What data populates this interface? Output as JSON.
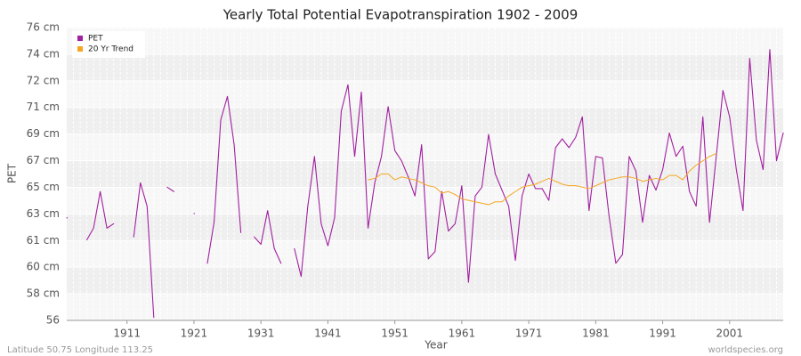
{
  "chart_data": {
    "type": "line",
    "title": "Yearly Total Potential Evapotranspiration 1902 - 2009",
    "xlabel": "Year",
    "ylabel": "PET",
    "footer_left": "Latitude 50.75 Longitude 113.25",
    "footer_right": "worldspecies.org",
    "legend": "upper left",
    "grid": true,
    "x": [
      1902,
      1903,
      1904,
      1905,
      1906,
      1907,
      1908,
      1909,
      1910,
      1911,
      1912,
      1913,
      1914,
      1915,
      1916,
      1917,
      1918,
      1919,
      1920,
      1921,
      1922,
      1923,
      1924,
      1925,
      1926,
      1927,
      1928,
      1929,
      1930,
      1931,
      1932,
      1933,
      1934,
      1935,
      1936,
      1937,
      1938,
      1939,
      1940,
      1941,
      1942,
      1943,
      1944,
      1945,
      1946,
      1947,
      1948,
      1949,
      1950,
      1951,
      1952,
      1953,
      1954,
      1955,
      1956,
      1957,
      1958,
      1959,
      1960,
      1961,
      1962,
      1963,
      1964,
      1965,
      1966,
      1967,
      1968,
      1969,
      1970,
      1971,
      1972,
      1973,
      1974,
      1975,
      1976,
      1977,
      1978,
      1979,
      1980,
      1981,
      1982,
      1983,
      1984,
      1985,
      1986,
      1987,
      1988,
      1989,
      1990,
      1991,
      1992,
      1993,
      1994,
      1995,
      1996,
      1997,
      1998,
      1999,
      2000,
      2001,
      2002,
      2003,
      2004,
      2005,
      2006,
      2007,
      2008,
      2009
    ],
    "series": [
      {
        "name": "PET",
        "color": "#a0209f",
        "values": [
          63.0,
          null,
          null,
          61.5,
          62.3,
          64.8,
          62.3,
          62.6,
          null,
          null,
          61.7,
          65.4,
          63.8,
          56.2,
          null,
          65.1,
          64.8,
          null,
          null,
          63.3,
          null,
          59.9,
          62.7,
          69.7,
          71.3,
          68.0,
          62.0,
          null,
          61.7,
          61.2,
          63.5,
          60.9,
          59.9,
          null,
          60.9,
          59.0,
          63.8,
          67.2,
          62.6,
          61.1,
          63.0,
          70.3,
          72.1,
          67.2,
          71.6,
          62.3,
          65.4,
          67.2,
          70.6,
          67.6,
          66.9,
          65.8,
          64.5,
          68.0,
          60.2,
          60.7,
          64.8,
          62.1,
          62.6,
          65.2,
          58.6,
          64.5,
          65.1,
          68.7,
          66.0,
          64.9,
          63.8,
          60.1,
          64.5,
          66.0,
          65.0,
          65.0,
          64.2,
          67.8,
          68.4,
          67.8,
          68.5,
          69.9,
          63.5,
          67.2,
          67.1,
          63.1,
          59.9,
          60.5,
          67.2,
          66.2,
          62.7,
          65.9,
          64.9,
          66.3,
          68.8,
          67.2,
          67.9,
          64.8,
          63.8,
          69.9,
          62.7,
          67.2,
          71.7,
          69.9,
          66.3,
          63.5,
          73.9,
          68.3,
          66.3,
          74.5,
          66.9,
          68.8
        ]
      },
      {
        "name": "20 Yr Trend",
        "color": "#f5a623",
        "values": [
          null,
          null,
          null,
          null,
          null,
          null,
          null,
          null,
          null,
          null,
          null,
          null,
          null,
          null,
          null,
          null,
          null,
          null,
          null,
          null,
          null,
          null,
          null,
          null,
          null,
          null,
          null,
          null,
          null,
          null,
          null,
          null,
          null,
          null,
          null,
          null,
          null,
          null,
          null,
          null,
          null,
          null,
          null,
          null,
          null,
          65.6,
          65.7,
          66.0,
          66.0,
          65.6,
          65.8,
          65.7,
          65.6,
          65.4,
          65.2,
          65.1,
          64.7,
          64.8,
          64.6,
          64.3,
          64.2,
          64.1,
          64.0,
          63.9,
          64.1,
          64.1,
          64.5,
          64.8,
          65.1,
          65.2,
          65.3,
          65.5,
          65.7,
          65.5,
          65.3,
          65.2,
          65.2,
          65.1,
          65.0,
          65.2,
          65.4,
          65.6,
          65.7,
          65.8,
          65.8,
          65.7,
          65.5,
          65.6,
          65.7,
          65.6,
          65.9,
          65.9,
          65.6,
          66.2,
          66.6,
          66.9,
          67.2,
          67.4,
          null,
          null,
          null,
          null,
          null,
          null,
          null,
          null,
          null,
          null
        ]
      }
    ],
    "xlim": [
      1902,
      2009
    ],
    "xticks": [
      1911,
      1921,
      1931,
      1941,
      1951,
      1961,
      1971,
      1981,
      1991,
      2001
    ],
    "ylim": [
      56,
      76
    ],
    "yticks": [
      56,
      {
        "value": 57.82,
        "label": "58 cm"
      },
      {
        "value": 59.64,
        "label": "60 cm"
      },
      {
        "value": 61.45,
        "label": "61 cm"
      },
      {
        "value": 63.27,
        "label": "63 cm"
      },
      {
        "value": 65.09,
        "label": "65 cm"
      },
      {
        "value": 66.91,
        "label": "67 cm"
      },
      {
        "value": 68.73,
        "label": "69 cm"
      },
      {
        "value": 70.55,
        "label": "71 cm"
      },
      {
        "value": 72.36,
        "label": "72 cm"
      },
      {
        "value": 74.18,
        "label": "74 cm"
      },
      {
        "value": 76,
        "label": "76 cm"
      }
    ]
  }
}
